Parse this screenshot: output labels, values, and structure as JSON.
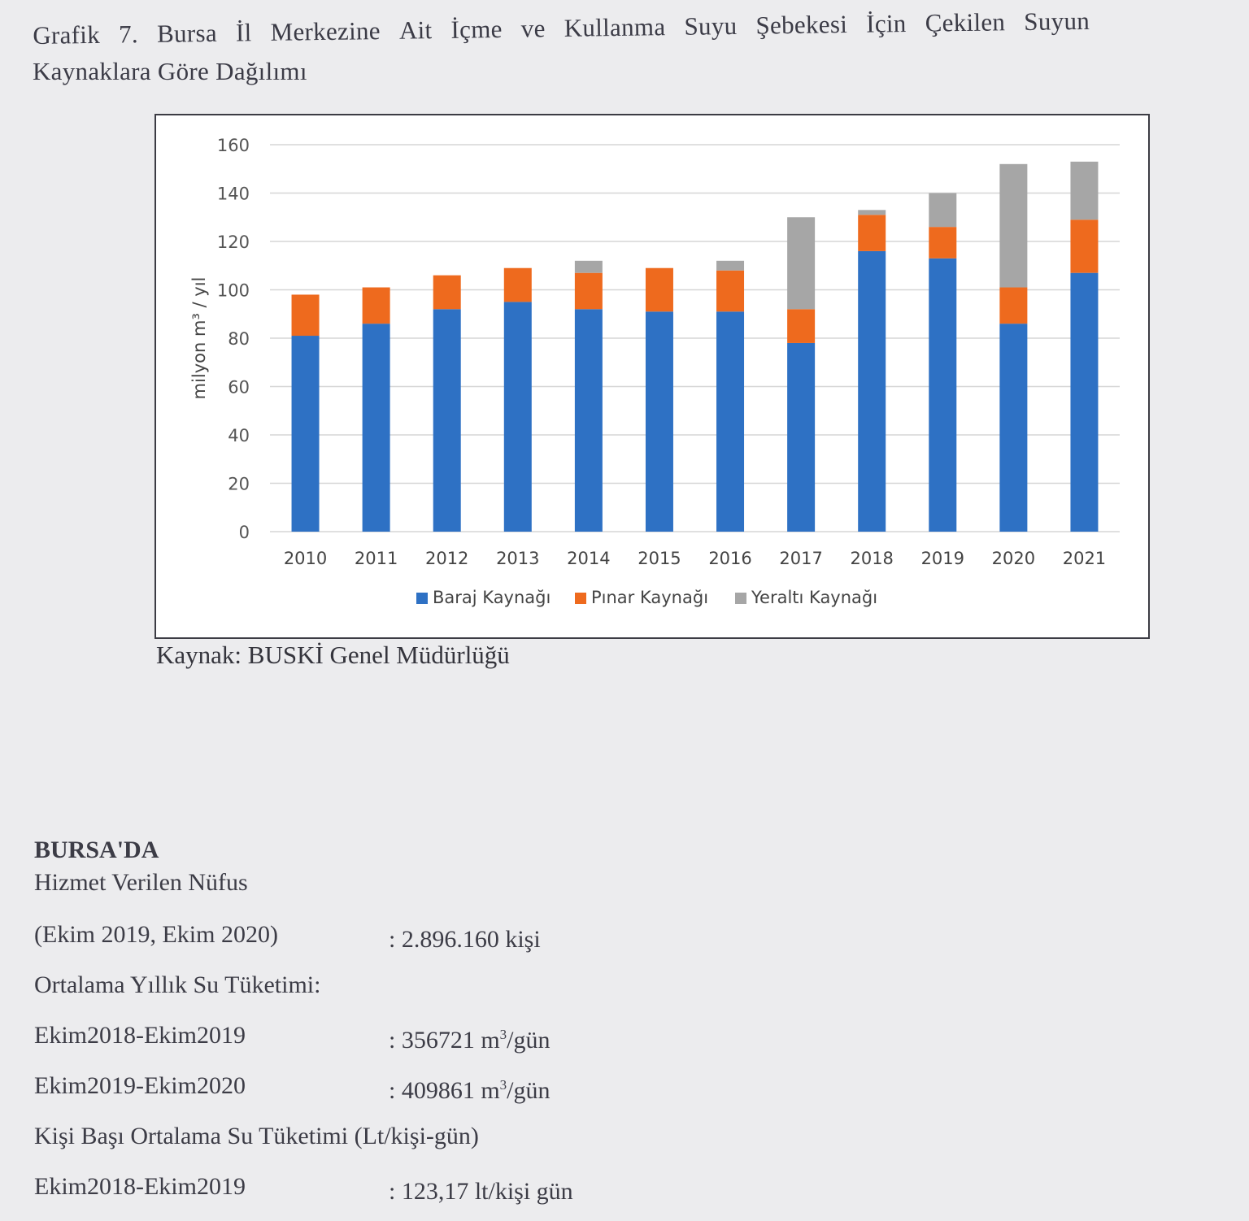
{
  "caption": {
    "line1_words": [
      "Grafik",
      "7.",
      "Bursa",
      "İl",
      "Merkezine",
      "Ait",
      "İçme",
      "ve",
      "Kullanma",
      "Suyu",
      "Şebekesi",
      "İçin",
      "Çekilen",
      "Suyun"
    ],
    "line2": "Kaynaklara Göre Dağılımı"
  },
  "chart_data": {
    "type": "bar",
    "stacked": true,
    "categories": [
      "2010",
      "2011",
      "2012",
      "2013",
      "2014",
      "2015",
      "2016",
      "2017",
      "2018",
      "2019",
      "2020",
      "2021"
    ],
    "series": [
      {
        "name": "Baraj Kaynağı",
        "color": "#2e71c4",
        "values": [
          81,
          86,
          92,
          95,
          92,
          91,
          91,
          78,
          116,
          113,
          86,
          107
        ]
      },
      {
        "name": "Pınar Kaynağı",
        "color": "#ee6a1e",
        "values": [
          17,
          15,
          14,
          14,
          15,
          18,
          17,
          14,
          15,
          13,
          15,
          22
        ]
      },
      {
        "name": "Yeraltı Kaynağı",
        "color": "#a6a6a6",
        "values": [
          0,
          0,
          0,
          0,
          5,
          0,
          4,
          38,
          2,
          14,
          51,
          24
        ]
      }
    ],
    "ylabel": "milyon m³ / yıl",
    "ylim": [
      0,
      160
    ],
    "yticks": [
      "0",
      "20",
      "40",
      "60",
      "80",
      "100",
      "120",
      "140",
      "160"
    ],
    "grid": true,
    "legend_position": "bottom"
  },
  "source": "Kaynak: BUSKİ Genel Müdürlüğü",
  "stats": {
    "heading": "BURSA'DA",
    "row1": "Hizmet Verilen Nüfus",
    "row2_label": "(Ekim 2019, Ekim 2020)",
    "row2_value": ": 2.896.160 kişi",
    "row3": "Ortalama Yıllık Su Tüketimi:",
    "row4_label": "Ekim2018-Ekim2019",
    "row4_value_num": ": 356721 m",
    "row4_value_sup": "3",
    "row4_value_unit": "/gün",
    "row5_label": "Ekim2019-Ekim2020",
    "row5_value_num": ": 409861 m",
    "row5_value_sup": "3",
    "row5_value_unit": "/gün",
    "row6": "Kişi Başı Ortalama Su Tüketimi (Lt/kişi-gün)",
    "row7_label": "Ekim2018-Ekim2019",
    "row7_value": ": 123,17 lt/kişi gün"
  }
}
